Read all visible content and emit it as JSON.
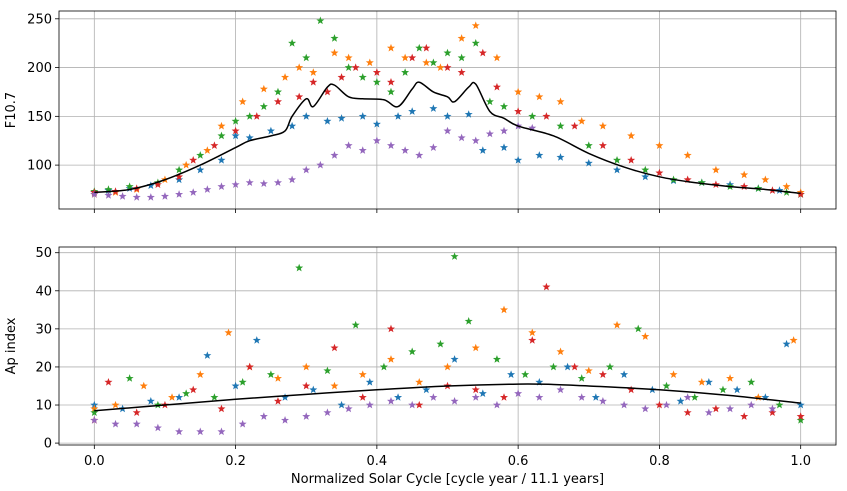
{
  "chart_data": [
    {
      "type": "scatter",
      "panel": "top",
      "title": "",
      "xlabel": "",
      "ylabel": "F10.7",
      "xlim": [
        -0.05,
        1.05
      ],
      "ylim": [
        55,
        258
      ],
      "xticks": [
        0.0,
        0.2,
        0.4,
        0.6,
        0.8,
        1.0
      ],
      "xticklabels": [
        "",
        "",
        "",
        "",
        "",
        ""
      ],
      "yticks": [
        100,
        150,
        200,
        250
      ],
      "yticklabels": [
        "100",
        "150",
        "200",
        "250"
      ],
      "grid": true,
      "legend": "none",
      "mean_curve": {
        "color": "#000000",
        "x": [
          0.0,
          0.05,
          0.1,
          0.15,
          0.2,
          0.22,
          0.25,
          0.27,
          0.28,
          0.3,
          0.31,
          0.33,
          0.34,
          0.36,
          0.38,
          0.41,
          0.43,
          0.45,
          0.46,
          0.48,
          0.5,
          0.51,
          0.53,
          0.54,
          0.56,
          0.58,
          0.6,
          0.65,
          0.7,
          0.75,
          0.8,
          0.85,
          0.9,
          0.95,
          1.0
        ],
        "y": [
          72,
          75,
          85,
          100,
          118,
          125,
          130,
          135,
          150,
          168,
          160,
          180,
          182,
          170,
          168,
          167,
          160,
          178,
          185,
          175,
          170,
          165,
          180,
          183,
          155,
          148,
          140,
          130,
          112,
          98,
          88,
          82,
          78,
          75,
          71
        ]
      },
      "series": [
        {
          "color": "#1f77b4",
          "marker": "star",
          "x": [
            0.0,
            0.02,
            0.05,
            0.08,
            0.12,
            0.15,
            0.18,
            0.2,
            0.22,
            0.25,
            0.28,
            0.3,
            0.33,
            0.35,
            0.38,
            0.4,
            0.43,
            0.45,
            0.48,
            0.5,
            0.53,
            0.55,
            0.58,
            0.6,
            0.63,
            0.66,
            0.7,
            0.74,
            0.78,
            0.82,
            0.86,
            0.9,
            0.94,
            0.97,
            1.0
          ],
          "y": [
            72,
            74,
            76,
            79,
            85,
            95,
            105,
            130,
            128,
            135,
            140,
            150,
            145,
            148,
            150,
            142,
            150,
            155,
            158,
            150,
            152,
            115,
            118,
            105,
            110,
            108,
            102,
            95,
            88,
            84,
            82,
            80,
            76,
            74,
            70
          ]
        },
        {
          "color": "#ff7f0e",
          "marker": "star",
          "x": [
            0.0,
            0.03,
            0.06,
            0.1,
            0.13,
            0.16,
            0.18,
            0.21,
            0.24,
            0.27,
            0.29,
            0.31,
            0.34,
            0.36,
            0.39,
            0.42,
            0.44,
            0.47,
            0.49,
            0.52,
            0.54,
            0.57,
            0.6,
            0.63,
            0.66,
            0.69,
            0.72,
            0.76,
            0.8,
            0.84,
            0.88,
            0.92,
            0.95,
            0.98,
            1.0
          ],
          "y": [
            70,
            72,
            75,
            85,
            100,
            115,
            140,
            165,
            178,
            190,
            200,
            195,
            215,
            210,
            205,
            220,
            210,
            205,
            200,
            230,
            243,
            210,
            175,
            170,
            165,
            145,
            140,
            130,
            120,
            110,
            95,
            90,
            85,
            78,
            72
          ]
        },
        {
          "color": "#2ca02c",
          "marker": "star",
          "x": [
            0.0,
            0.02,
            0.05,
            0.09,
            0.12,
            0.15,
            0.18,
            0.2,
            0.22,
            0.24,
            0.26,
            0.28,
            0.3,
            0.32,
            0.34,
            0.36,
            0.38,
            0.4,
            0.42,
            0.44,
            0.46,
            0.48,
            0.5,
            0.52,
            0.54,
            0.56,
            0.58,
            0.62,
            0.66,
            0.7,
            0.74,
            0.78,
            0.82,
            0.86,
            0.9,
            0.94,
            0.98,
            1.0
          ],
          "y": [
            73,
            75,
            78,
            82,
            95,
            110,
            130,
            145,
            150,
            160,
            175,
            225,
            210,
            248,
            230,
            200,
            190,
            185,
            175,
            195,
            220,
            205,
            215,
            210,
            225,
            165,
            160,
            150,
            140,
            120,
            105,
            95,
            85,
            82,
            78,
            76,
            72,
            70
          ]
        },
        {
          "color": "#d62728",
          "marker": "star",
          "x": [
            0.0,
            0.03,
            0.06,
            0.09,
            0.12,
            0.14,
            0.17,
            0.2,
            0.23,
            0.26,
            0.29,
            0.31,
            0.33,
            0.35,
            0.37,
            0.4,
            0.42,
            0.45,
            0.47,
            0.5,
            0.52,
            0.55,
            0.57,
            0.6,
            0.64,
            0.68,
            0.72,
            0.76,
            0.8,
            0.84,
            0.88,
            0.92,
            0.96,
            1.0
          ],
          "y": [
            72,
            73,
            76,
            80,
            88,
            105,
            120,
            135,
            150,
            165,
            170,
            185,
            175,
            190,
            200,
            195,
            185,
            210,
            220,
            200,
            195,
            215,
            180,
            155,
            150,
            140,
            120,
            105,
            92,
            85,
            80,
            78,
            74,
            70
          ]
        },
        {
          "color": "#9467bd",
          "marker": "star",
          "x": [
            0.0,
            0.02,
            0.04,
            0.06,
            0.08,
            0.1,
            0.12,
            0.14,
            0.16,
            0.18,
            0.2,
            0.22,
            0.24,
            0.26,
            0.28,
            0.3,
            0.32,
            0.34,
            0.36,
            0.38,
            0.4,
            0.42,
            0.44,
            0.46,
            0.48,
            0.5,
            0.52,
            0.54,
            0.56,
            0.58,
            0.6,
            0.62
          ],
          "y": [
            70,
            69,
            68,
            67,
            67,
            68,
            70,
            72,
            75,
            78,
            80,
            82,
            81,
            82,
            85,
            95,
            100,
            110,
            120,
            115,
            125,
            120,
            115,
            110,
            118,
            135,
            128,
            125,
            132,
            135,
            140,
            138
          ]
        }
      ]
    },
    {
      "type": "scatter",
      "panel": "bottom",
      "title": "",
      "xlabel": "Normalized Solar Cycle [cycle year / 11.1 years]",
      "ylabel": "Ap index",
      "xlim": [
        -0.05,
        1.05
      ],
      "ylim": [
        -0.5,
        51.5
      ],
      "xticks": [
        0.0,
        0.2,
        0.4,
        0.6,
        0.8,
        1.0
      ],
      "xticklabels": [
        "0.0",
        "0.2",
        "0.4",
        "0.6",
        "0.8",
        "1.0"
      ],
      "yticks": [
        0,
        10,
        20,
        30,
        40,
        50
      ],
      "yticklabels": [
        "0",
        "10",
        "20",
        "30",
        "40",
        "50"
      ],
      "grid": true,
      "legend": "none",
      "mean_curve": {
        "color": "#000000",
        "x": [
          0.0,
          0.1,
          0.2,
          0.3,
          0.4,
          0.5,
          0.6,
          0.65,
          0.7,
          0.8,
          0.9,
          1.0
        ],
        "y": [
          8.5,
          10,
          11.5,
          12.8,
          14,
          15,
          15.5,
          15.4,
          15,
          14,
          12.5,
          10.5
        ]
      },
      "series": [
        {
          "color": "#1f77b4",
          "marker": "star",
          "x": [
            0.0,
            0.04,
            0.08,
            0.12,
            0.16,
            0.2,
            0.23,
            0.27,
            0.31,
            0.35,
            0.39,
            0.43,
            0.47,
            0.51,
            0.55,
            0.59,
            0.63,
            0.67,
            0.71,
            0.75,
            0.79,
            0.83,
            0.87,
            0.91,
            0.95,
            0.98,
            1.0
          ],
          "y": [
            10,
            9,
            11,
            12,
            23,
            15,
            27,
            12,
            14,
            10,
            16,
            12,
            14,
            22,
            13,
            18,
            16,
            20,
            12,
            18,
            14,
            11,
            16,
            14,
            12,
            26,
            10
          ]
        },
        {
          "color": "#ff7f0e",
          "marker": "star",
          "x": [
            0.0,
            0.03,
            0.07,
            0.11,
            0.15,
            0.19,
            0.22,
            0.26,
            0.3,
            0.34,
            0.38,
            0.42,
            0.46,
            0.5,
            0.54,
            0.58,
            0.62,
            0.66,
            0.7,
            0.74,
            0.78,
            0.82,
            0.86,
            0.9,
            0.94,
            0.99
          ],
          "y": [
            9,
            10,
            15,
            12,
            18,
            29,
            20,
            17,
            20,
            15,
            18,
            22,
            16,
            20,
            25,
            35,
            29,
            24,
            19,
            31,
            28,
            18,
            16,
            17,
            12,
            27
          ]
        },
        {
          "color": "#2ca02c",
          "marker": "star",
          "x": [
            0.0,
            0.05,
            0.09,
            0.13,
            0.17,
            0.21,
            0.25,
            0.29,
            0.33,
            0.37,
            0.41,
            0.45,
            0.49,
            0.51,
            0.53,
            0.57,
            0.61,
            0.65,
            0.69,
            0.73,
            0.77,
            0.81,
            0.85,
            0.89,
            0.93,
            0.97,
            1.0
          ],
          "y": [
            8,
            17,
            10,
            13,
            12,
            16,
            18,
            46,
            19,
            31,
            20,
            24,
            26,
            49,
            32,
            22,
            18,
            20,
            17,
            20,
            30,
            15,
            12,
            14,
            16,
            10,
            6
          ]
        },
        {
          "color": "#d62728",
          "marker": "star",
          "x": [
            0.0,
            0.02,
            0.06,
            0.1,
            0.14,
            0.18,
            0.22,
            0.26,
            0.3,
            0.34,
            0.38,
            0.42,
            0.46,
            0.5,
            0.54,
            0.58,
            0.62,
            0.64,
            0.68,
            0.72,
            0.76,
            0.8,
            0.84,
            0.88,
            0.92,
            0.96,
            1.0
          ],
          "y": [
            6,
            16,
            8,
            10,
            14,
            9,
            20,
            11,
            15,
            25,
            12,
            30,
            10,
            15,
            14,
            12,
            27,
            41,
            20,
            18,
            14,
            10,
            8,
            9,
            7,
            8,
            7
          ]
        },
        {
          "color": "#9467bd",
          "marker": "star",
          "x": [
            0.0,
            0.03,
            0.06,
            0.09,
            0.12,
            0.15,
            0.18,
            0.21,
            0.24,
            0.27,
            0.3,
            0.33,
            0.36,
            0.39,
            0.42,
            0.45,
            0.48,
            0.51,
            0.54,
            0.57,
            0.6,
            0.63,
            0.66,
            0.69,
            0.72,
            0.75,
            0.78,
            0.81,
            0.84,
            0.87,
            0.9,
            0.93,
            0.96
          ],
          "y": [
            6,
            5,
            5,
            4,
            3,
            3,
            3,
            5,
            7,
            6,
            7,
            8,
            9,
            10,
            11,
            10,
            12,
            11,
            12,
            10,
            13,
            12,
            14,
            12,
            11,
            10,
            9,
            10,
            12,
            8,
            9,
            10,
            9
          ]
        }
      ]
    }
  ]
}
